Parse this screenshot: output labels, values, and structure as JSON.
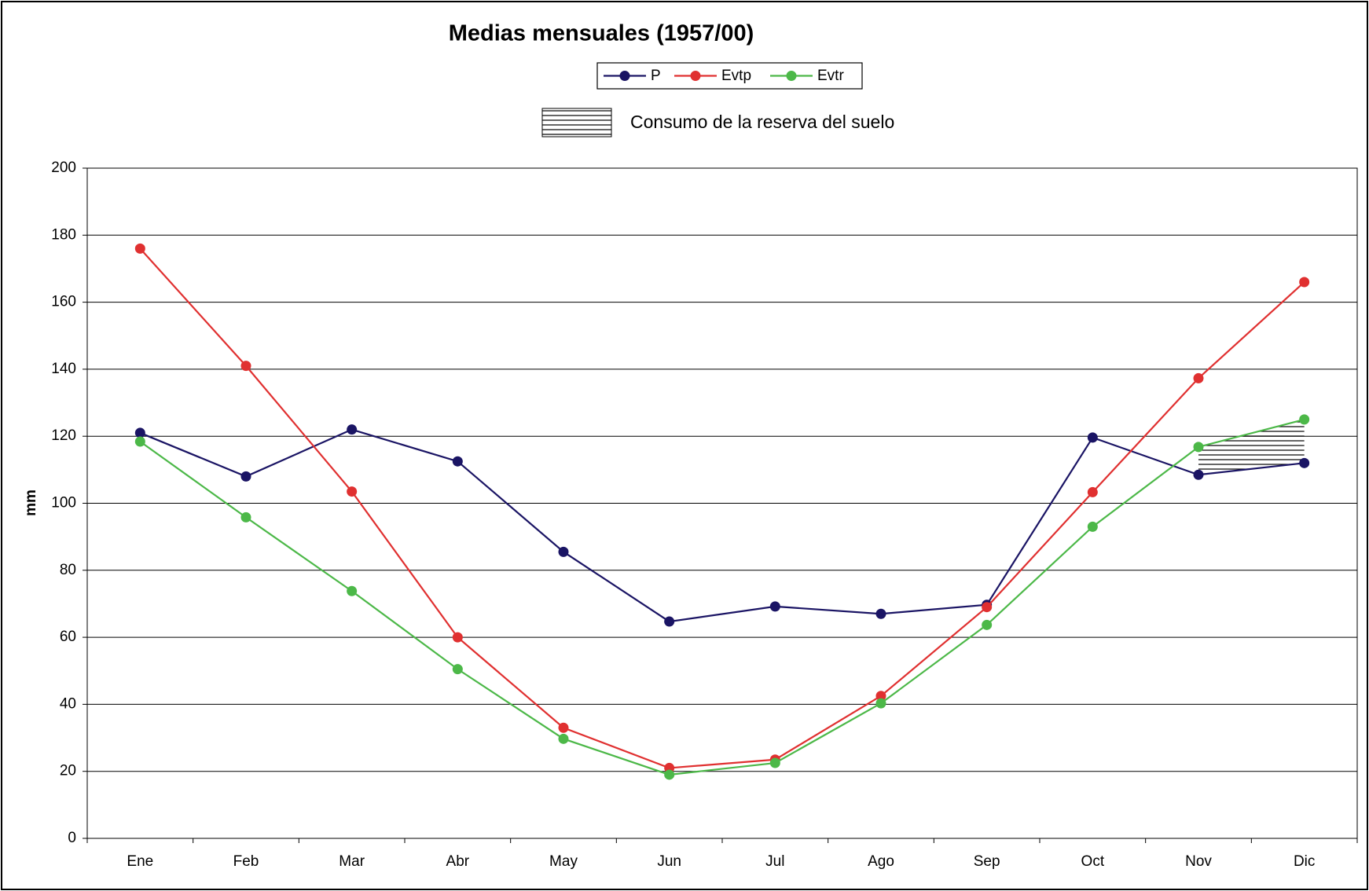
{
  "chart_data": {
    "type": "line",
    "title": "Medias mensuales (1957/00)",
    "y_label": "mm",
    "annotation": "Consumo de la reserva del suelo",
    "categories": [
      "Ene",
      "Feb",
      "Mar",
      "Abr",
      "May",
      "Jun",
      "Jul",
      "Ago",
      "Sep",
      "Oct",
      "Nov",
      "Dic"
    ],
    "series": [
      {
        "name": "P",
        "color": "#1a1464",
        "values": [
          121,
          108,
          122,
          112.5,
          85.5,
          64.7,
          69.2,
          67,
          69.7,
          119.6,
          108.5,
          112
        ]
      },
      {
        "name": "Evtp",
        "color": "#e03030",
        "values": [
          176,
          141,
          103.5,
          60,
          33,
          21,
          23.5,
          42.5,
          69,
          103.3,
          137.3,
          166
        ]
      },
      {
        "name": "Evtr",
        "color": "#4cb848",
        "values": [
          118.4,
          95.8,
          73.8,
          50.5,
          29.7,
          19,
          22.5,
          40.3,
          63.7,
          93,
          116.8,
          125
        ]
      }
    ],
    "ylim": [
      0,
      200
    ],
    "yticks": [
      0,
      20,
      40,
      60,
      80,
      100,
      120,
      140,
      160,
      180,
      200
    ],
    "grid": true
  }
}
